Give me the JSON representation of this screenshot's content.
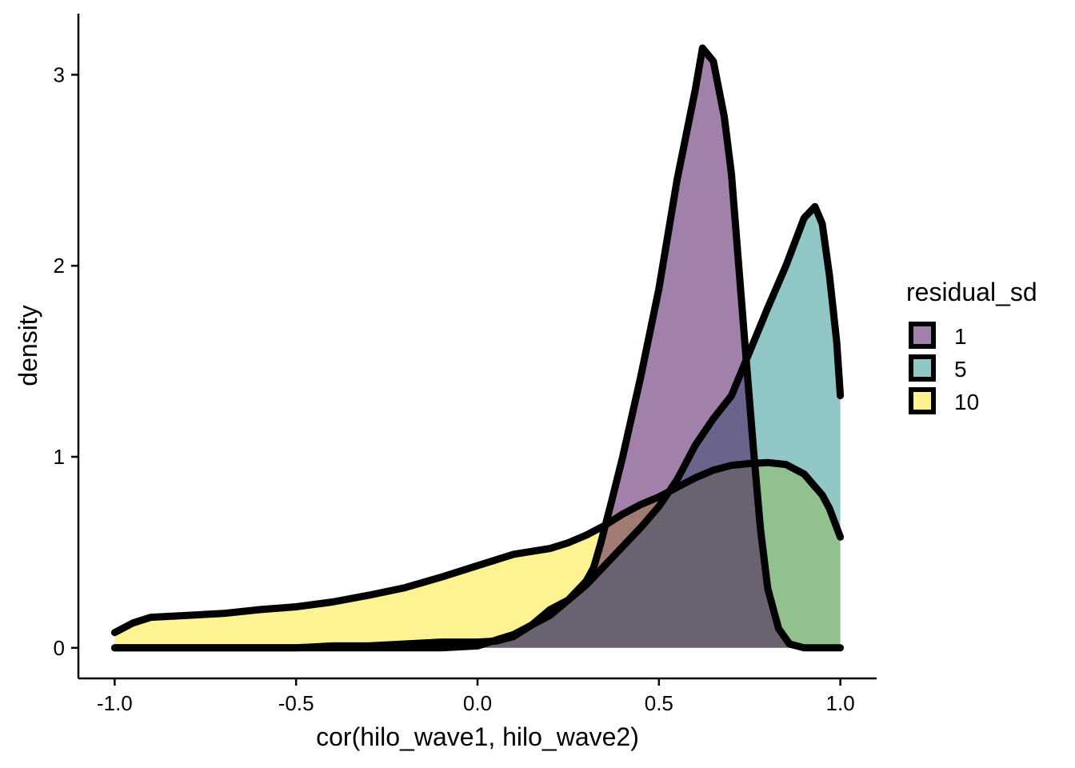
{
  "chart_data": {
    "type": "area",
    "xlabel": "cor(hilo_wave1, hilo_wave2)",
    "ylabel": "density",
    "xlim": [
      -1.1,
      1.1
    ],
    "ylim": [
      -0.16,
      3.32
    ],
    "x_ticks": [
      -1.0,
      -0.5,
      0.0,
      0.5,
      1.0
    ],
    "x_tick_labels": [
      "-1.0",
      "-0.5",
      "0.0",
      "0.5",
      "1.0"
    ],
    "y_ticks": [
      0,
      1,
      2,
      3
    ],
    "y_tick_labels": [
      "0",
      "1",
      "2",
      "3"
    ],
    "grid": false,
    "legend": {
      "title": "residual_sd",
      "position": "right",
      "entries": [
        "1",
        "5",
        "10"
      ]
    },
    "series": [
      {
        "name": "10",
        "color": "#FDE725",
        "opacity": 0.5,
        "points": [
          [
            -1.0,
            0.08
          ],
          [
            -0.95,
            0.13
          ],
          [
            -0.9,
            0.16
          ],
          [
            -0.8,
            0.17
          ],
          [
            -0.7,
            0.18
          ],
          [
            -0.6,
            0.2
          ],
          [
            -0.5,
            0.215
          ],
          [
            -0.4,
            0.24
          ],
          [
            -0.3,
            0.275
          ],
          [
            -0.2,
            0.315
          ],
          [
            -0.1,
            0.37
          ],
          [
            0.0,
            0.43
          ],
          [
            0.05,
            0.46
          ],
          [
            0.1,
            0.49
          ],
          [
            0.2,
            0.52
          ],
          [
            0.25,
            0.55
          ],
          [
            0.3,
            0.59
          ],
          [
            0.35,
            0.64
          ],
          [
            0.4,
            0.7
          ],
          [
            0.45,
            0.75
          ],
          [
            0.5,
            0.79
          ],
          [
            0.55,
            0.84
          ],
          [
            0.6,
            0.89
          ],
          [
            0.65,
            0.93
          ],
          [
            0.7,
            0.955
          ],
          [
            0.75,
            0.965
          ],
          [
            0.8,
            0.97
          ],
          [
            0.85,
            0.96
          ],
          [
            0.9,
            0.91
          ],
          [
            0.95,
            0.8
          ],
          [
            0.97,
            0.73
          ],
          [
            1.0,
            0.58
          ]
        ]
      },
      {
        "name": "5",
        "color": "#21908C",
        "opacity": 0.5,
        "points": [
          [
            -1.0,
            0.0
          ],
          [
            -0.8,
            0.0
          ],
          [
            -0.6,
            0.0
          ],
          [
            -0.5,
            0.0
          ],
          [
            -0.4,
            0.01
          ],
          [
            -0.3,
            0.01
          ],
          [
            -0.2,
            0.02
          ],
          [
            -0.1,
            0.03
          ],
          [
            0.0,
            0.03
          ],
          [
            0.05,
            0.035
          ],
          [
            0.1,
            0.06
          ],
          [
            0.15,
            0.12
          ],
          [
            0.2,
            0.17
          ],
          [
            0.25,
            0.25
          ],
          [
            0.3,
            0.33
          ],
          [
            0.35,
            0.43
          ],
          [
            0.4,
            0.53
          ],
          [
            0.45,
            0.63
          ],
          [
            0.5,
            0.74
          ],
          [
            0.55,
            0.88
          ],
          [
            0.6,
            1.06
          ],
          [
            0.65,
            1.2
          ],
          [
            0.7,
            1.32
          ],
          [
            0.75,
            1.55
          ],
          [
            0.8,
            1.78
          ],
          [
            0.85,
            2.0
          ],
          [
            0.9,
            2.25
          ],
          [
            0.93,
            2.31
          ],
          [
            0.95,
            2.22
          ],
          [
            0.97,
            1.95
          ],
          [
            0.99,
            1.6
          ],
          [
            1.0,
            1.32
          ]
        ]
      },
      {
        "name": "1",
        "color": "#440154",
        "opacity": 0.5,
        "points": [
          [
            -1.0,
            0.0
          ],
          [
            -0.5,
            0.0
          ],
          [
            -0.1,
            0.0
          ],
          [
            0.0,
            0.01
          ],
          [
            0.05,
            0.04
          ],
          [
            0.1,
            0.07
          ],
          [
            0.15,
            0.12
          ],
          [
            0.2,
            0.2
          ],
          [
            0.25,
            0.25
          ],
          [
            0.3,
            0.35
          ],
          [
            0.32,
            0.42
          ],
          [
            0.34,
            0.55
          ],
          [
            0.37,
            0.77
          ],
          [
            0.4,
            1.0
          ],
          [
            0.45,
            1.42
          ],
          [
            0.5,
            1.88
          ],
          [
            0.55,
            2.45
          ],
          [
            0.6,
            2.92
          ],
          [
            0.62,
            3.14
          ],
          [
            0.65,
            3.07
          ],
          [
            0.68,
            2.78
          ],
          [
            0.7,
            2.48
          ],
          [
            0.72,
            2.0
          ],
          [
            0.74,
            1.52
          ],
          [
            0.76,
            1.05
          ],
          [
            0.78,
            0.62
          ],
          [
            0.8,
            0.31
          ],
          [
            0.83,
            0.1
          ],
          [
            0.86,
            0.02
          ],
          [
            0.9,
            0.0
          ],
          [
            1.0,
            0.0
          ]
        ]
      }
    ]
  }
}
